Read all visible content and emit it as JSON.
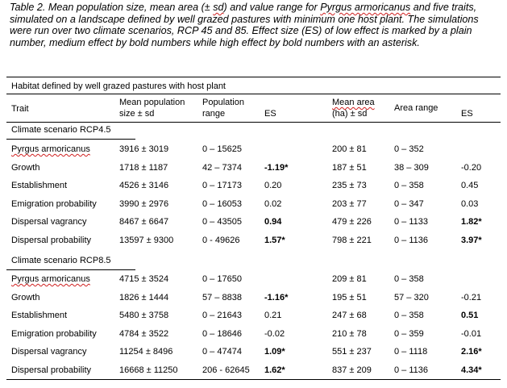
{
  "caption": {
    "prefix": "Table 2. Mean population size, mean area (± ",
    "sd": "sd",
    "mid1": ") and value range for ",
    "species": "Pyrgus armoricanus",
    "rest": " and five traits, simulated on a landscape defined by well grazed pastures with minimum one host plant. The simulations were run over two climate scenarios, RCP 45 and 85. Effect size (ES) of low effect is marked by a plain number, medium effect by bold numbers while high effect by bold numbers with an asterisk."
  },
  "table": {
    "title": "Habitat defined by well grazed pastures with host plant",
    "headers": {
      "trait": "Trait",
      "mean_pop_1": "Mean population",
      "mean_pop_2": "size ± sd",
      "pop_range_1": "Population",
      "pop_range_2": "range",
      "es1": "ES",
      "mean_area_1": "Mean area",
      "mean_area_2": "(ha) ± sd",
      "area_range": "Area range",
      "es2": "ES"
    },
    "sections": [
      {
        "label": "Climate scenario RCP4.5",
        "rows": [
          {
            "trait": "Pyrgus armoricanus",
            "mean_pop": "3916 ± 3019",
            "pop_range": "0 – 15625",
            "es1": "",
            "es1_bold": false,
            "mean_area": "200 ± 81",
            "area_range": "0 – 352",
            "es2": "",
            "es2_bold": false
          },
          {
            "trait": "Growth",
            "mean_pop": "1718 ± 1187",
            "pop_range": "42 – 7374",
            "es1": "-1.19*",
            "es1_bold": true,
            "mean_area": "187 ± 51",
            "area_range": "38 – 309",
            "es2": "-0.20",
            "es2_bold": false
          },
          {
            "trait": "Establishment",
            "mean_pop": "4526 ± 3146",
            "pop_range": "0 – 17173",
            "es1": "0.20",
            "es1_bold": false,
            "mean_area": "235 ± 73",
            "area_range": "0 – 358",
            "es2": "0.45",
            "es2_bold": false
          },
          {
            "trait": "Emigration probability",
            "mean_pop": "3990 ± 2976",
            "pop_range": "0 – 16053",
            "es1": "0.02",
            "es1_bold": false,
            "mean_area": "203 ± 77",
            "area_range": "0 – 347",
            "es2": "0.03",
            "es2_bold": false
          },
          {
            "trait": "Dispersal vagrancy",
            "mean_pop": "8467 ± 6647",
            "pop_range": "0 – 43505",
            "es1": "0.94",
            "es1_bold": true,
            "mean_area": "479 ± 226",
            "area_range": "0 – 1133",
            "es2": "1.82*",
            "es2_bold": true
          },
          {
            "trait": "Dispersal probability",
            "mean_pop": "13597 ± 9300",
            "pop_range": "0 - 49626",
            "es1": "1.57*",
            "es1_bold": true,
            "mean_area": "798 ± 221",
            "area_range": "0 – 1136",
            "es2": "3.97*",
            "es2_bold": true
          }
        ]
      },
      {
        "label": "Climate scenario RCP8.5",
        "rows": [
          {
            "trait": "Pyrgus armoricanus",
            "mean_pop": "4715 ± 3524",
            "pop_range": "0 – 17650",
            "es1": "",
            "es1_bold": false,
            "mean_area": "209 ± 81",
            "area_range": "0 – 358",
            "es2": "",
            "es2_bold": false
          },
          {
            "trait": "Growth",
            "mean_pop": "1826 ± 1444",
            "pop_range": "57 – 8838",
            "es1": "-1.16*",
            "es1_bold": true,
            "mean_area": "195 ± 51",
            "area_range": "57 – 320",
            "es2": "-0.21",
            "es2_bold": false
          },
          {
            "trait": "Establishment",
            "mean_pop": "5480 ± 3758",
            "pop_range": "0 – 21643",
            "es1": "0.21",
            "es1_bold": false,
            "mean_area": "247 ± 68",
            "area_range": "0 – 358",
            "es2": "0.51",
            "es2_bold": true
          },
          {
            "trait": "Emigration probability",
            "mean_pop": "4784 ± 3522",
            "pop_range": "0 – 18646",
            "es1": "-0.02",
            "es1_bold": false,
            "mean_area": "210 ± 78",
            "area_range": "0 – 359",
            "es2": "-0.01",
            "es2_bold": false
          },
          {
            "trait": "Dispersal vagrancy",
            "mean_pop": "11254 ± 8496",
            "pop_range": "0 – 47474",
            "es1": "1.09*",
            "es1_bold": true,
            "mean_area": "551 ± 237",
            "area_range": "0 – 1118",
            "es2": "2.16*",
            "es2_bold": true
          },
          {
            "trait": "Dispersal probability",
            "mean_pop": "16668 ± 11250",
            "pop_range": "206 - 62645",
            "es1": "1.62*",
            "es1_bold": true,
            "mean_area": "837 ± 209",
            "area_range": "0 – 1136",
            "es2": "4.34*",
            "es2_bold": true
          }
        ]
      }
    ]
  }
}
